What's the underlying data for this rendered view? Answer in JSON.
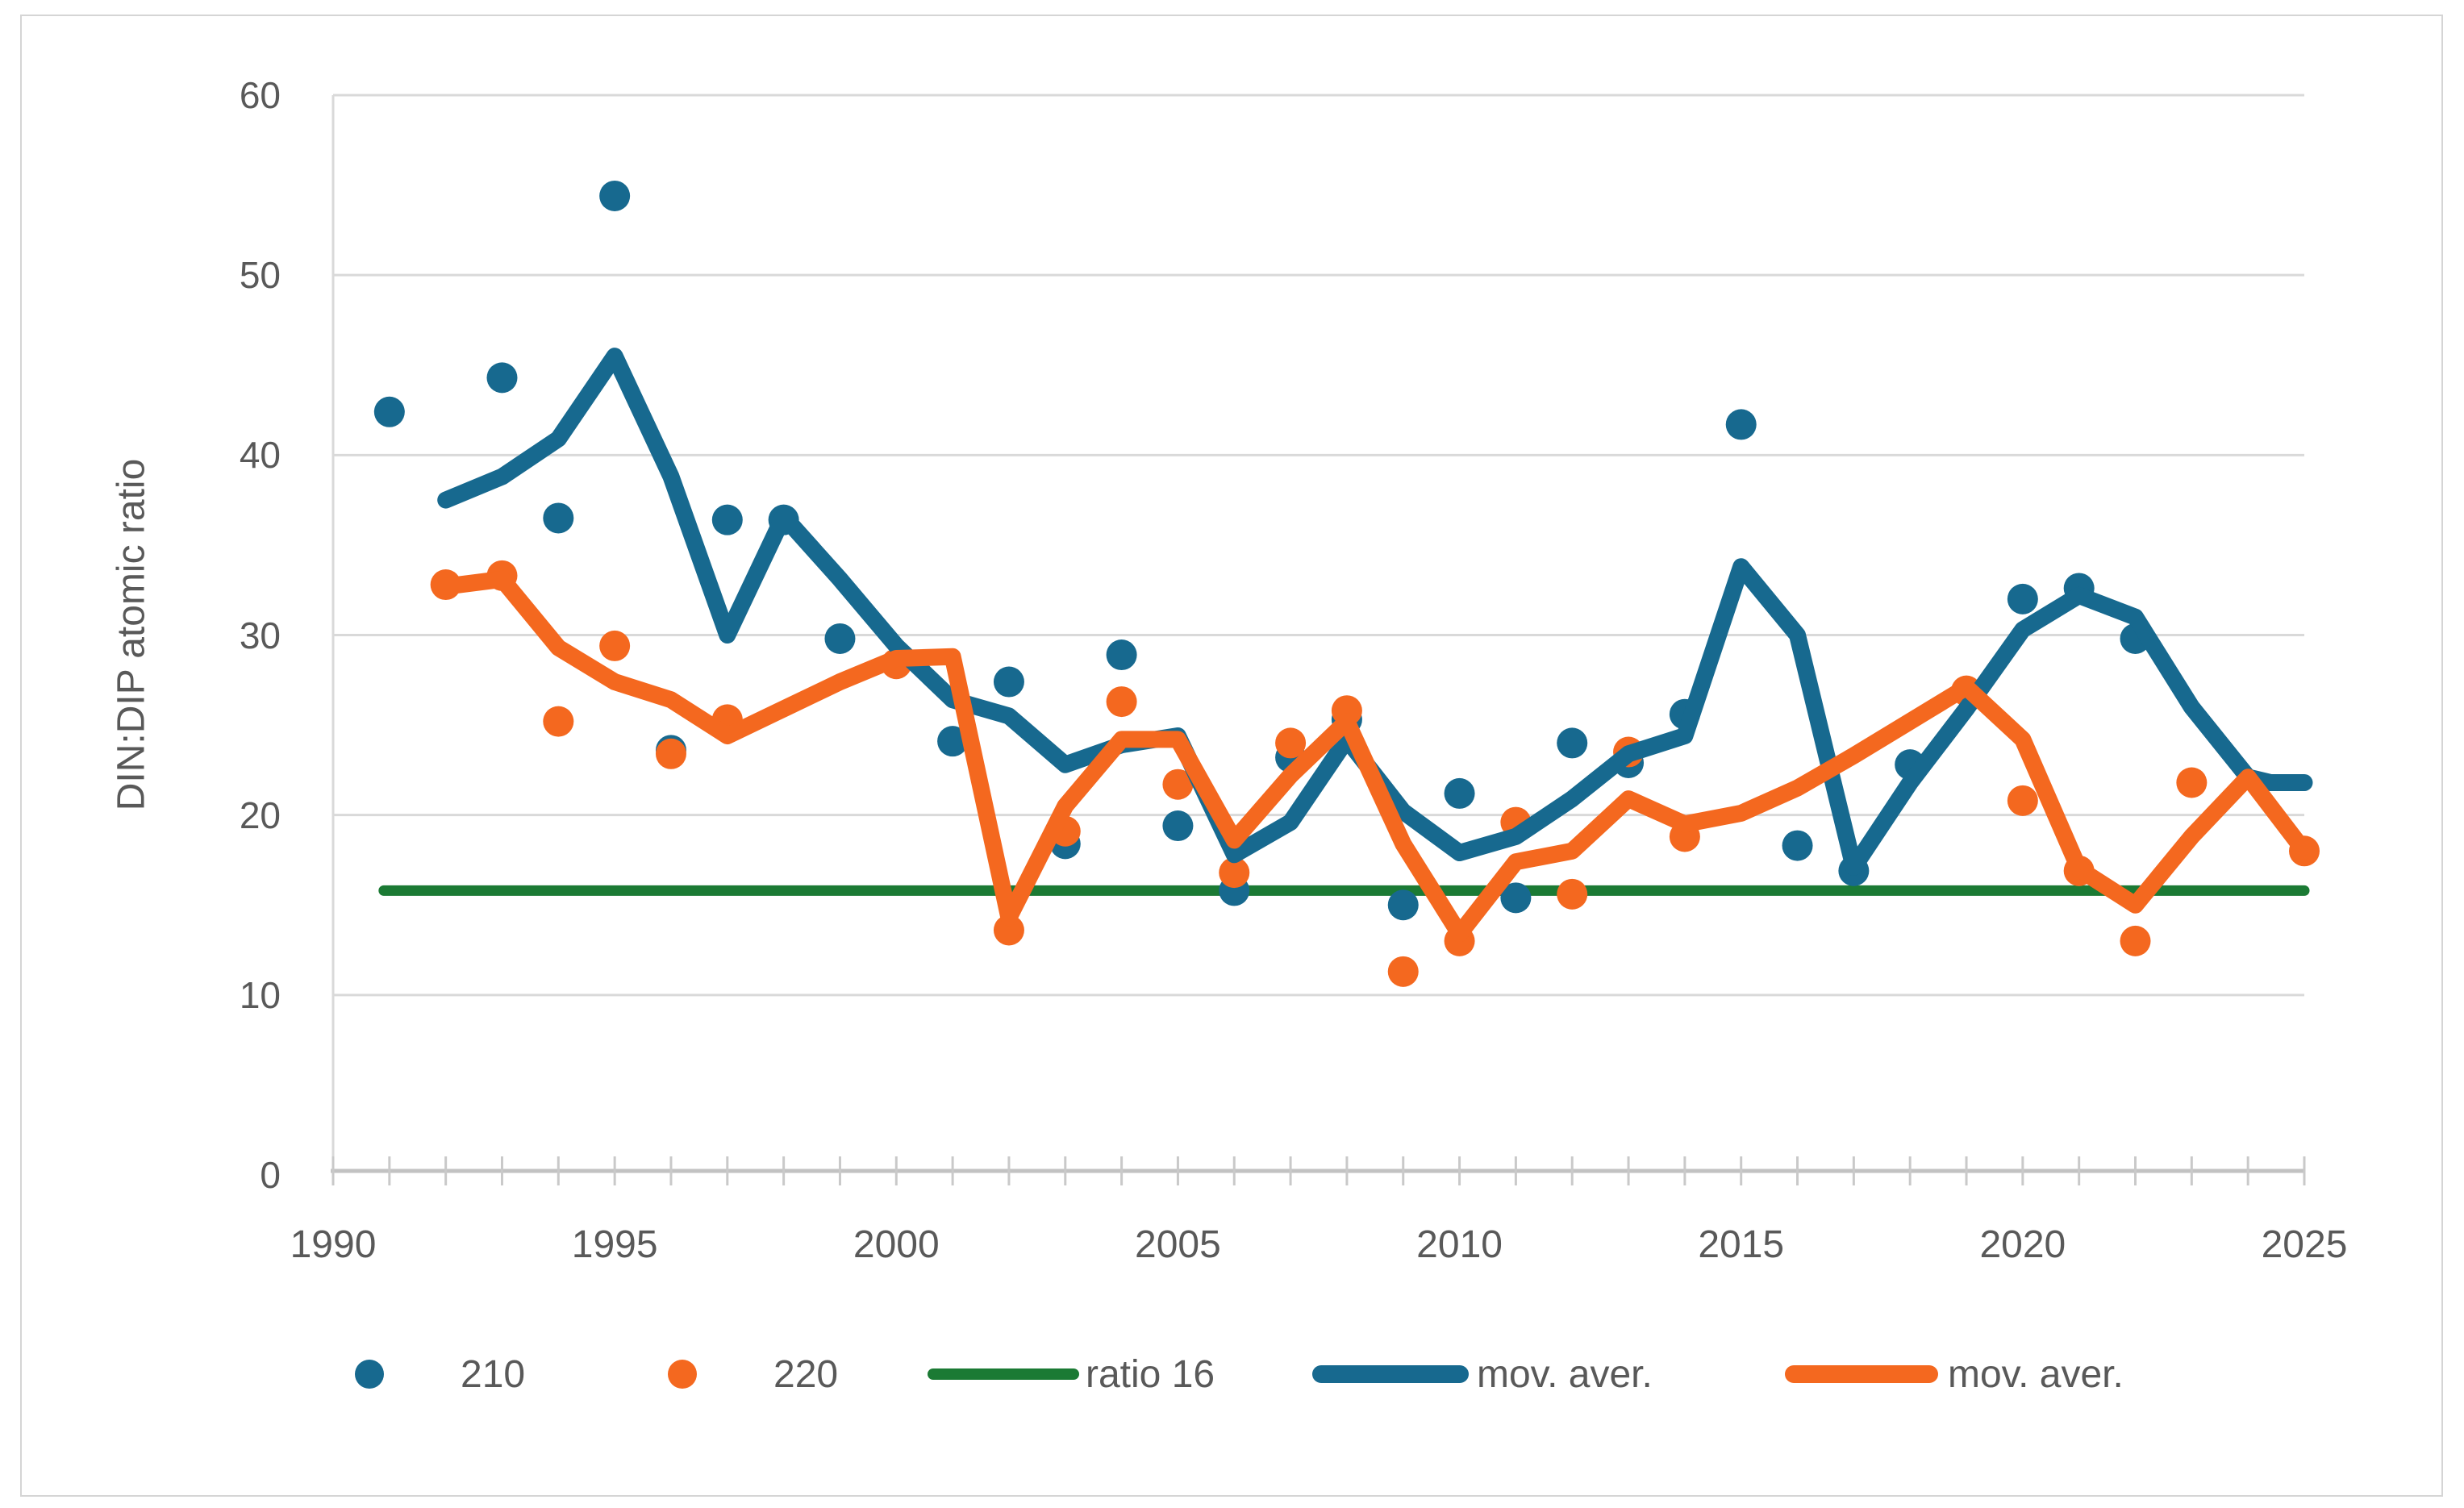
{
  "figure": {
    "kind": "excel-style scatter chart with moving-average trendlines and reference line"
  },
  "chart_data": {
    "type": "scatter",
    "title": "",
    "xlabel": "",
    "ylabel": "DIN:DIP atomic ratio",
    "xlim": [
      1990,
      2025
    ],
    "ylim": [
      0,
      60
    ],
    "x_ticks": [
      1990,
      1995,
      2000,
      2005,
      2010,
      2015,
      2020,
      2025
    ],
    "y_ticks": [
      0,
      10,
      20,
      30,
      40,
      50,
      60
    ],
    "grid": "horizontal",
    "legend_position": "bottom",
    "colors": {
      "blue": "#17698f",
      "orange": "#f4681f",
      "green": "#1b7a34",
      "gridline": "#d9d9d9",
      "axis": "#c2c2c2",
      "text": "#595959"
    },
    "series": [
      {
        "name": "210",
        "kind": "scatter",
        "color": "#17698f",
        "points": [
          [
            1991,
            42.4
          ],
          [
            1993,
            44.3
          ],
          [
            1994,
            36.5
          ],
          [
            1995,
            54.4
          ],
          [
            1996,
            23.6
          ],
          [
            1997,
            36.4
          ],
          [
            1998,
            36.4
          ],
          [
            1999,
            29.8
          ],
          [
            2001,
            24.1
          ],
          [
            2002,
            27.4
          ],
          [
            2003,
            18.4
          ],
          [
            2004,
            28.9
          ],
          [
            2005,
            19.4
          ],
          [
            2006,
            15.8
          ],
          [
            2007,
            23.2
          ],
          [
            2008,
            25.3
          ],
          [
            2009,
            15.0
          ],
          [
            2010,
            21.2
          ],
          [
            2011,
            15.4
          ],
          [
            2012,
            24.0
          ],
          [
            2013,
            22.9
          ],
          [
            2014,
            25.6
          ],
          [
            2015,
            41.7
          ],
          [
            2016,
            18.3
          ],
          [
            2017,
            16.9
          ],
          [
            2018,
            22.8
          ],
          [
            2020,
            32.0
          ],
          [
            2021,
            32.6
          ],
          [
            2022,
            29.8
          ]
        ]
      },
      {
        "name": "220",
        "kind": "scatter",
        "color": "#f4681f",
        "points": [
          [
            1992,
            32.8
          ],
          [
            1993,
            33.3
          ],
          [
            1994,
            25.2
          ],
          [
            1995,
            29.4
          ],
          [
            1996,
            23.4
          ],
          [
            1997,
            25.3
          ],
          [
            2000,
            28.4
          ],
          [
            2002,
            13.6
          ],
          [
            2003,
            19.1
          ],
          [
            2004,
            26.3
          ],
          [
            2005,
            21.7
          ],
          [
            2006,
            16.8
          ],
          [
            2007,
            24.0
          ],
          [
            2008,
            25.8
          ],
          [
            2009,
            11.3
          ],
          [
            2010,
            13.0
          ],
          [
            2011,
            19.6
          ],
          [
            2012,
            15.6
          ],
          [
            2013,
            23.5
          ],
          [
            2014,
            18.8
          ],
          [
            2019,
            26.9
          ],
          [
            2020,
            20.8
          ],
          [
            2021,
            16.9
          ],
          [
            2022,
            13.0
          ],
          [
            2023,
            21.8
          ],
          [
            2025,
            18.0
          ]
        ]
      },
      {
        "name": "ratio 16",
        "kind": "line",
        "color": "#1b7a34",
        "width": 13,
        "points": [
          [
            1990.9,
            15.8
          ],
          [
            2025,
            15.8
          ]
        ]
      },
      {
        "name": "mov. aver.",
        "kind": "line",
        "color": "#17698f",
        "width": 21,
        "points": [
          [
            1992,
            37.5
          ],
          [
            1993,
            38.8
          ],
          [
            1994,
            40.9
          ],
          [
            1995,
            45.5
          ],
          [
            1996,
            38.8
          ],
          [
            1997,
            30.0
          ],
          [
            1998,
            36.6
          ],
          [
            1999,
            33.1
          ],
          [
            2000,
            29.4
          ],
          [
            2001,
            26.4
          ],
          [
            2002,
            25.5
          ],
          [
            2003,
            22.8
          ],
          [
            2004,
            23.9
          ],
          [
            2005,
            24.4
          ],
          [
            2006,
            17.8
          ],
          [
            2007,
            19.6
          ],
          [
            2008,
            24.2
          ],
          [
            2009,
            20.2
          ],
          [
            2010,
            17.9
          ],
          [
            2011,
            18.8
          ],
          [
            2012,
            20.9
          ],
          [
            2013,
            23.4
          ],
          [
            2014,
            24.4
          ],
          [
            2015,
            33.8
          ],
          [
            2016,
            30.0
          ],
          [
            2017,
            17.1
          ],
          [
            2018,
            21.8
          ],
          [
            2019,
            25.9
          ],
          [
            2020,
            30.3
          ],
          [
            2021,
            32.2
          ],
          [
            2022,
            31.0
          ],
          [
            2023,
            26.0
          ],
          [
            2024,
            22.1
          ],
          [
            2024.4,
            21.8
          ],
          [
            2025,
            21.8
          ]
        ]
      },
      {
        "name": "mov. aver.",
        "kind": "line",
        "color": "#f4681f",
        "width": 21,
        "points": [
          [
            1992,
            32.7
          ],
          [
            1993,
            33.1
          ],
          [
            1994,
            29.3
          ],
          [
            1995,
            27.4
          ],
          [
            1996,
            26.4
          ],
          [
            1997,
            24.4
          ],
          [
            1998,
            25.9
          ],
          [
            1999,
            27.4
          ],
          [
            2000,
            28.7
          ],
          [
            2001,
            28.8
          ],
          [
            2002,
            14.3
          ],
          [
            2003,
            20.5
          ],
          [
            2004,
            24.2
          ],
          [
            2005,
            24.2
          ],
          [
            2006,
            18.6
          ],
          [
            2007,
            22.2
          ],
          [
            2008,
            25.2
          ],
          [
            2009,
            18.4
          ],
          [
            2010,
            13.4
          ],
          [
            2011,
            17.4
          ],
          [
            2012,
            18.0
          ],
          [
            2013,
            20.9
          ],
          [
            2014,
            19.5
          ],
          [
            2015,
            20.1
          ],
          [
            2016,
            21.5
          ],
          [
            2017,
            23.3
          ],
          [
            2018,
            25.2
          ],
          [
            2019,
            27.1
          ],
          [
            2020,
            24.2
          ],
          [
            2021,
            17.0
          ],
          [
            2022,
            15.0
          ],
          [
            2023,
            18.8
          ],
          [
            2024,
            22.1
          ],
          [
            2025,
            18.0
          ]
        ]
      }
    ],
    "reference_line_value": 16
  },
  "legend": {
    "items": [
      {
        "label": "210",
        "marker": "blue-dot"
      },
      {
        "label": "220",
        "marker": "orange-dot"
      },
      {
        "label": "ratio 16",
        "marker": "green-line"
      },
      {
        "label": "mov. aver.",
        "marker": "blue-line"
      },
      {
        "label": "mov. aver.",
        "marker": "orange-line"
      }
    ]
  }
}
